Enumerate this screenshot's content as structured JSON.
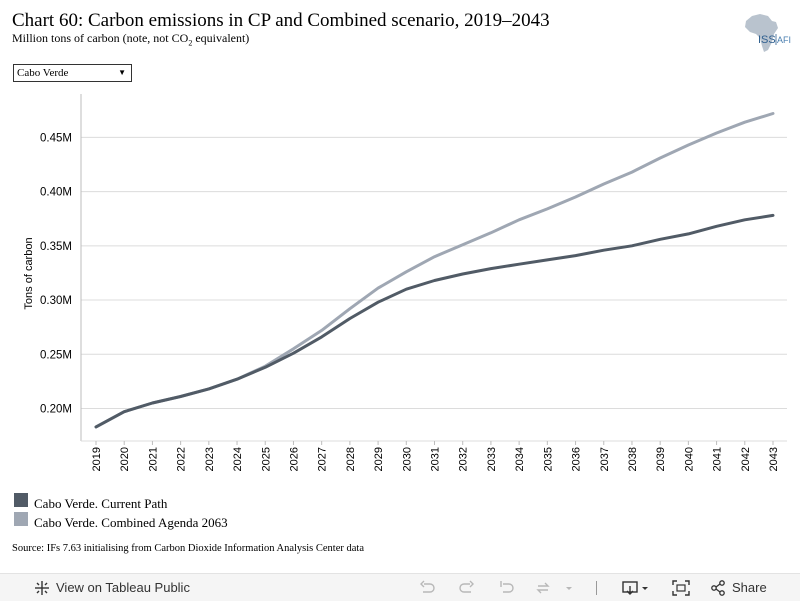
{
  "header": {
    "title": "Chart 60: Carbon emissions in CP and Combined scenario, 2019–2043",
    "subtitle_prefix": "Million tons of carbon (note, not CO",
    "subtitle_sub": "2",
    "subtitle_suffix": " equivalent)"
  },
  "logo": {
    "text_iss": "ISS",
    "text_afi": "AFI",
    "icon": "africa-map-logo"
  },
  "filter": {
    "selected": "Cabo Verde"
  },
  "chart_data": {
    "type": "line",
    "title": "",
    "xlabel": "",
    "ylabel": "Tons of carbon",
    "x": [
      "2019",
      "2020",
      "2021",
      "2022",
      "2023",
      "2024",
      "2025",
      "2026",
      "2027",
      "2028",
      "2029",
      "2030",
      "2031",
      "2032",
      "2033",
      "2034",
      "2035",
      "2036",
      "2037",
      "2038",
      "2039",
      "2040",
      "2041",
      "2042",
      "2043"
    ],
    "ylim": [
      0.17,
      0.49
    ],
    "yticks": [
      0.2,
      0.25,
      0.3,
      0.35,
      0.4,
      0.45
    ],
    "ytick_labels": [
      "0.20M",
      "0.25M",
      "0.30M",
      "0.35M",
      "0.40M",
      "0.45M"
    ],
    "grid": true,
    "legend_position": "bottom-left",
    "series": [
      {
        "name": "Cabo Verde. Current Path",
        "color": "#515b66",
        "values": [
          0.183,
          0.197,
          0.205,
          0.211,
          0.218,
          0.227,
          0.238,
          0.251,
          0.266,
          0.283,
          0.298,
          0.31,
          0.318,
          0.324,
          0.329,
          0.333,
          0.337,
          0.341,
          0.346,
          0.35,
          0.356,
          0.361,
          0.368,
          0.374,
          0.378
        ]
      },
      {
        "name": "Cabo Verde. Combined Agenda 2063",
        "color": "#9fa7b3",
        "values": [
          0.183,
          0.197,
          0.205,
          0.211,
          0.218,
          0.227,
          0.239,
          0.255,
          0.272,
          0.292,
          0.311,
          0.326,
          0.34,
          0.351,
          0.362,
          0.374,
          0.384,
          0.395,
          0.407,
          0.418,
          0.431,
          0.443,
          0.454,
          0.464,
          0.472
        ]
      }
    ]
  },
  "source": "Source: IFs 7.63 initialising from Carbon Dioxide Information Analysis Center data",
  "toolbar": {
    "view_label": "View on Tableau Public",
    "share_label": "Share"
  }
}
